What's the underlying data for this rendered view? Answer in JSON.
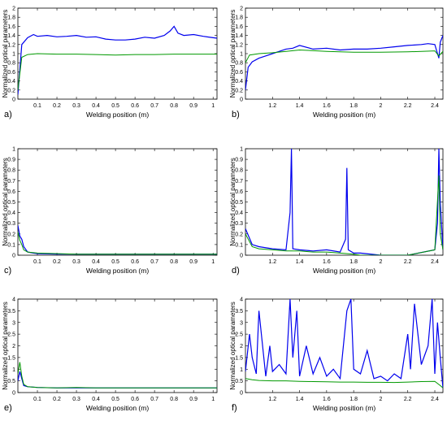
{
  "chart_data": [
    {
      "type": "line",
      "panel_label": "a)",
      "xlabel": "Welding position (m)",
      "ylabel": "Normalized optical parameters",
      "xlim": [
        0,
        1.02
      ],
      "ylim": [
        0,
        2
      ],
      "xticks": [
        "0.1",
        "0.2",
        "0.3",
        "0.4",
        "0.5",
        "0.6",
        "0.7",
        "0.8",
        "0.9",
        "1"
      ],
      "yticks": [
        "0",
        "0.2",
        "0.4",
        "0.6",
        "0.8",
        "1",
        "1.2",
        "1.4",
        "1.6",
        "1.8",
        "2"
      ],
      "series": [
        {
          "color": "#0000ee",
          "x": [
            0,
            0.02,
            0.05,
            0.08,
            0.1,
            0.15,
            0.2,
            0.25,
            0.3,
            0.35,
            0.4,
            0.45,
            0.5,
            0.55,
            0.6,
            0.65,
            0.7,
            0.75,
            0.78,
            0.8,
            0.82,
            0.85,
            0.9,
            0.95,
            1.0,
            1.02
          ],
          "y": [
            0.1,
            1.2,
            1.35,
            1.42,
            1.38,
            1.4,
            1.37,
            1.38,
            1.4,
            1.36,
            1.37,
            1.32,
            1.3,
            1.3,
            1.32,
            1.36,
            1.34,
            1.4,
            1.5,
            1.6,
            1.45,
            1.4,
            1.42,
            1.38,
            1.35,
            1.34
          ]
        },
        {
          "color": "#009900",
          "x": [
            0,
            0.02,
            0.05,
            0.1,
            0.2,
            0.3,
            0.4,
            0.5,
            0.6,
            0.7,
            0.8,
            0.9,
            1.0,
            1.02
          ],
          "y": [
            0.2,
            0.92,
            0.98,
            1.0,
            0.99,
            0.99,
            0.98,
            0.97,
            0.98,
            0.98,
            0.99,
            0.99,
            0.99,
            0.99
          ]
        }
      ]
    },
    {
      "type": "line",
      "panel_label": "b)",
      "xlabel": "Welding position (m)",
      "ylabel": "Normalized optical parameters",
      "xlim": [
        1.0,
        2.46
      ],
      "ylim": [
        0,
        2
      ],
      "xticks": [
        "1.2",
        "1.4",
        "1.6",
        "1.8",
        "2",
        "2.2",
        "2.4"
      ],
      "yticks": [
        "0",
        "0.2",
        "0.4",
        "0.6",
        "0.8",
        "1",
        "1.2",
        "1.4",
        "1.6",
        "1.8",
        "2"
      ],
      "series": [
        {
          "color": "#0000ee",
          "x": [
            1.0,
            1.02,
            1.05,
            1.1,
            1.15,
            1.2,
            1.25,
            1.3,
            1.35,
            1.4,
            1.5,
            1.6,
            1.7,
            1.8,
            1.9,
            2.0,
            2.1,
            2.2,
            2.3,
            2.35,
            2.4,
            2.43,
            2.44,
            2.46
          ],
          "y": [
            0.2,
            0.7,
            0.82,
            0.9,
            0.95,
            1.0,
            1.05,
            1.1,
            1.12,
            1.18,
            1.1,
            1.12,
            1.08,
            1.1,
            1.1,
            1.12,
            1.15,
            1.18,
            1.2,
            1.22,
            1.2,
            0.9,
            1.25,
            1.4
          ]
        },
        {
          "color": "#009900",
          "x": [
            1.0,
            1.03,
            1.1,
            1.2,
            1.3,
            1.4,
            1.6,
            1.8,
            2.0,
            2.2,
            2.3,
            2.4,
            2.43,
            2.46
          ],
          "y": [
            0.8,
            0.97,
            1.0,
            1.02,
            1.05,
            1.08,
            1.05,
            1.03,
            1.03,
            1.04,
            1.05,
            1.06,
            0.95,
            1.05
          ]
        }
      ]
    },
    {
      "type": "line",
      "panel_label": "c)",
      "xlabel": "Welding position (m)",
      "ylabel": "Normalized optical parameters",
      "xlim": [
        0,
        1.02
      ],
      "ylim": [
        0,
        1
      ],
      "xticks": [
        "0.1",
        "0.2",
        "0.3",
        "0.4",
        "0.5",
        "0.6",
        "0.7",
        "0.8",
        "0.9",
        "1"
      ],
      "yticks": [
        "0",
        "0.1",
        "0.2",
        "0.3",
        "0.4",
        "0.5",
        "0.6",
        "0.7",
        "0.8",
        "0.9",
        "1"
      ],
      "series": [
        {
          "color": "#0000ee",
          "x": [
            0,
            0.01,
            0.02,
            0.03,
            0.05,
            0.08,
            0.1,
            0.2,
            0.4,
            0.6,
            0.8,
            1.0,
            1.02
          ],
          "y": [
            0.28,
            0.18,
            0.15,
            0.08,
            0.03,
            0.02,
            0.015,
            0.01,
            0.01,
            0.01,
            0.01,
            0.01,
            0.01
          ]
        },
        {
          "color": "#009900",
          "x": [
            0,
            0.01,
            0.02,
            0.03,
            0.05,
            0.1,
            0.3,
            0.5,
            0.7,
            0.9,
            1.0,
            1.02
          ],
          "y": [
            0.22,
            0.14,
            0.1,
            0.05,
            0.03,
            0.02,
            0.01,
            0.01,
            0.01,
            0.01,
            0.01,
            0.01
          ]
        }
      ]
    },
    {
      "type": "line",
      "panel_label": "d)",
      "xlabel": "Welding position (m)",
      "ylabel": "Normalized optical parameters",
      "xlim": [
        1.0,
        2.46
      ],
      "ylim": [
        0,
        1
      ],
      "xticks": [
        "1.2",
        "1.4",
        "1.6",
        "1.8",
        "2",
        "2.2",
        "2.4"
      ],
      "yticks": [
        "0",
        "0.1",
        "0.2",
        "0.3",
        "0.4",
        "0.5",
        "0.6",
        "0.7",
        "0.8",
        "0.9",
        "1"
      ],
      "series": [
        {
          "color": "#0000ee",
          "x": [
            1.0,
            1.05,
            1.1,
            1.2,
            1.3,
            1.33,
            1.34,
            1.35,
            1.4,
            1.5,
            1.6,
            1.7,
            1.74,
            1.75,
            1.76,
            1.8,
            1.85,
            2.0,
            2.2,
            2.4,
            2.42,
            2.43,
            2.44,
            2.46
          ],
          "y": [
            0.25,
            0.1,
            0.08,
            0.06,
            0.05,
            0.4,
            1.0,
            0.06,
            0.05,
            0.04,
            0.05,
            0.03,
            0.15,
            0.82,
            0.05,
            0.02,
            0.02,
            0.0,
            0.0,
            0.05,
            0.3,
            1.0,
            0.5,
            0.05
          ]
        },
        {
          "color": "#009900",
          "x": [
            1.0,
            1.05,
            1.1,
            1.2,
            1.3,
            1.4,
            1.5,
            1.6,
            1.7,
            1.8,
            1.85,
            2.0,
            2.2,
            2.4,
            2.43,
            2.44,
            2.46
          ],
          "y": [
            0.2,
            0.08,
            0.06,
            0.05,
            0.04,
            0.04,
            0.03,
            0.03,
            0.02,
            0.01,
            0.0,
            0.0,
            0.0,
            0.05,
            0.75,
            0.2,
            0.05
          ]
        }
      ]
    },
    {
      "type": "line",
      "panel_label": "e)",
      "xlabel": "Welding position (m)",
      "ylabel": "Normalized optical parameters",
      "xlim": [
        0,
        1.02
      ],
      "ylim": [
        0,
        4
      ],
      "xticks": [
        "0.1",
        "0.2",
        "0.3",
        "0.4",
        "0.5",
        "0.6",
        "0.7",
        "0.8",
        "0.9",
        "1"
      ],
      "yticks": [
        "0",
        "0.5",
        "1",
        "1.5",
        "2",
        "2.5",
        "3",
        "3.5",
        "4"
      ],
      "series": [
        {
          "color": "#0000ee",
          "x": [
            0,
            0.01,
            0.02,
            0.03,
            0.05,
            0.1,
            0.2,
            0.3,
            0.4,
            0.6,
            0.8,
            1.0,
            1.02
          ],
          "y": [
            0.5,
            0.9,
            0.6,
            0.3,
            0.25,
            0.22,
            0.2,
            0.2,
            0.2,
            0.2,
            0.2,
            0.2,
            0.2
          ]
        },
        {
          "color": "#009900",
          "x": [
            0,
            0.01,
            0.02,
            0.03,
            0.05,
            0.1,
            0.2,
            0.3,
            0.4,
            0.6,
            0.8,
            1.0,
            1.02
          ],
          "y": [
            0.8,
            1.3,
            0.7,
            0.35,
            0.25,
            0.22,
            0.2,
            0.22,
            0.2,
            0.2,
            0.2,
            0.2,
            0.2
          ]
        }
      ]
    },
    {
      "type": "line",
      "panel_label": "f)",
      "xlabel": "Welding position (m)",
      "ylabel": "Normalized optical parameters",
      "xlim": [
        1.0,
        2.46
      ],
      "ylim": [
        0,
        4
      ],
      "xticks": [
        "1.2",
        "1.4",
        "1.6",
        "1.8",
        "2",
        "2.2",
        "2.4"
      ],
      "yticks": [
        "0",
        "0.5",
        "1",
        "1.5",
        "2",
        "2.5",
        "3",
        "3.5",
        "4"
      ],
      "series": [
        {
          "color": "#0000ee",
          "x": [
            1.0,
            1.03,
            1.05,
            1.08,
            1.1,
            1.15,
            1.18,
            1.2,
            1.25,
            1.3,
            1.33,
            1.35,
            1.38,
            1.4,
            1.45,
            1.5,
            1.55,
            1.6,
            1.65,
            1.7,
            1.75,
            1.78,
            1.8,
            1.85,
            1.9,
            1.95,
            2.0,
            2.05,
            2.1,
            2.15,
            2.2,
            2.22,
            2.25,
            2.3,
            2.35,
            2.38,
            2.4,
            2.42,
            2.44,
            2.46
          ],
          "y": [
            0.9,
            2.5,
            1.5,
            0.8,
            3.5,
            0.7,
            2.0,
            0.9,
            1.2,
            0.8,
            4.0,
            1.5,
            3.5,
            0.7,
            2.0,
            0.8,
            1.5,
            0.7,
            1.0,
            0.6,
            3.5,
            4.0,
            1.0,
            0.8,
            1.8,
            0.6,
            0.7,
            0.5,
            0.8,
            0.6,
            2.5,
            1.0,
            3.8,
            1.2,
            2.0,
            4.0,
            0.8,
            3.0,
            1.5,
            0.2
          ]
        },
        {
          "color": "#009900",
          "x": [
            1.0,
            1.05,
            1.1,
            1.2,
            1.3,
            1.4,
            1.5,
            1.6,
            1.7,
            1.8,
            1.9,
            2.0,
            2.1,
            2.2,
            2.3,
            2.4,
            2.44,
            2.46
          ],
          "y": [
            0.6,
            0.55,
            0.52,
            0.5,
            0.5,
            0.48,
            0.47,
            0.46,
            0.45,
            0.45,
            0.44,
            0.44,
            0.43,
            0.45,
            0.47,
            0.48,
            0.3,
            0.2
          ]
        }
      ]
    }
  ]
}
